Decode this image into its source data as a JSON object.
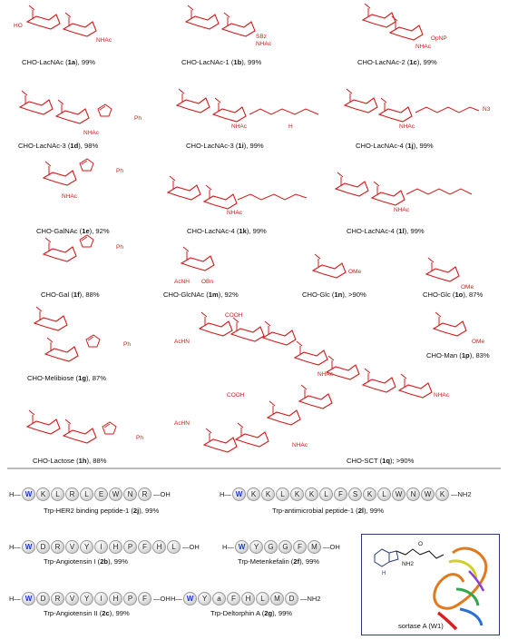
{
  "colors": {
    "structure_red": "#d11a1a",
    "trp_blue": "#1a33c9",
    "divider": "#bbbbbb",
    "bead": "#d8d8d8"
  },
  "carbohydrates": [
    {
      "name": "CHO-LacNAc (",
      "id": "1a",
      "yield": "), 99%"
    },
    {
      "name": "CHO-LacNAc-1 (",
      "id": "1b",
      "yield": "), 99%"
    },
    {
      "name": "CHO-LacNAc-2 (",
      "id": "1c",
      "yield": "), 99%"
    },
    {
      "name": "CHO-LacNAc-3 (",
      "id": "1d",
      "yield": "), 98%"
    },
    {
      "name": "CHO-LacNAc-3 (",
      "id": "1i",
      "yield": "), 99%"
    },
    {
      "name": "CHO-LacNAc-4 (",
      "id": "1j",
      "yield": "), 99%"
    },
    {
      "name": "CHO-GalNAc (",
      "id": "1e",
      "yield": "), 92%"
    },
    {
      "name": "CHO-LacNAc-4 (",
      "id": "1k",
      "yield": "), 99%"
    },
    {
      "name": "CHO-LacNAc-4 (",
      "id": "1l",
      "yield": "), 99%"
    },
    {
      "name": "CHO-Gal (",
      "id": "1f",
      "yield": "), 88%"
    },
    {
      "name": "CHO-GlcNAc (",
      "id": "1m",
      "yield": "), 92%"
    },
    {
      "name": "CHO-Glc (",
      "id": "1n",
      "yield": "), >90%"
    },
    {
      "name": "CHO-Glc (",
      "id": "1o",
      "yield": "), 87%"
    },
    {
      "name": "CHO-Man (",
      "id": "1p",
      "yield": "), 83%"
    },
    {
      "name": "CHO-Melibiose (",
      "id": "1g",
      "yield": "), 87%"
    },
    {
      "name": "CHO-Lactose (",
      "id": "1h",
      "yield": "), 88%"
    },
    {
      "name": "CHO-SCT (",
      "id": "1q",
      "yield": "); >90%"
    }
  ],
  "structure_labels": {
    "nhac": "NHAc",
    "acnh": "AcNH",
    "achn": "AcHN",
    "ho": "HO",
    "oh": "OH",
    "o": "O",
    "sbz": "SBz",
    "opnp": "OpNP",
    "ph": "Ph",
    "h": "H",
    "n": "N",
    "s": "S",
    "n3": "N3",
    "nh2": "NH2",
    "obn": "OBn",
    "ome": "OMe",
    "cooh": "COOH",
    "sortase_nh2": "NH2"
  },
  "peptides": [
    {
      "label_pre": "Trp-HER2 binding peptide-1 (",
      "id": "2j",
      "label_post": "), 99%",
      "nterm": "H",
      "cterm": "OH",
      "residues": [
        "W",
        "K",
        "L",
        "R",
        "L",
        "E",
        "W",
        "N",
        "R"
      ]
    },
    {
      "label_pre": "Trp-antimicrobial peptide-1 (",
      "id": "2l",
      "label_post": "), 99%",
      "nterm": "H",
      "cterm": "NH2",
      "residues": [
        "W",
        "K",
        "K",
        "L",
        "K",
        "K",
        "L",
        "F",
        "S",
        "K",
        "L",
        "W",
        "N",
        "W",
        "K"
      ]
    },
    {
      "label_pre": "Trp-Angiotensin I (",
      "id": "2b",
      "label_post": "), 99%",
      "nterm": "H",
      "cterm": "OH",
      "residues": [
        "W",
        "D",
        "R",
        "V",
        "Y",
        "I",
        "H",
        "P",
        "F",
        "H",
        "L"
      ]
    },
    {
      "label_pre": "Trp-Metenkefalin (",
      "id": "2f",
      "label_post": "), 99%",
      "nterm": "H",
      "cterm": "OH",
      "residues": [
        "W",
        "Y",
        "G",
        "G",
        "F",
        "M"
      ]
    },
    {
      "label_pre": "Trp-Angiotensin II (",
      "id": "2c",
      "label_post": "), 99%",
      "nterm": "H",
      "cterm": "OH",
      "residues": [
        "W",
        "D",
        "R",
        "V",
        "Y",
        "I",
        "H",
        "P",
        "F"
      ]
    },
    {
      "label_pre": "Trp-Deltorphin A (",
      "id": "2g",
      "label_post": "), 99%",
      "nterm": "H",
      "cterm": "NH2",
      "residues": [
        "W",
        "Y",
        "a",
        "F",
        "H",
        "L",
        "M",
        "D"
      ]
    }
  ],
  "sortase": {
    "caption": "sortase A (W1)"
  }
}
